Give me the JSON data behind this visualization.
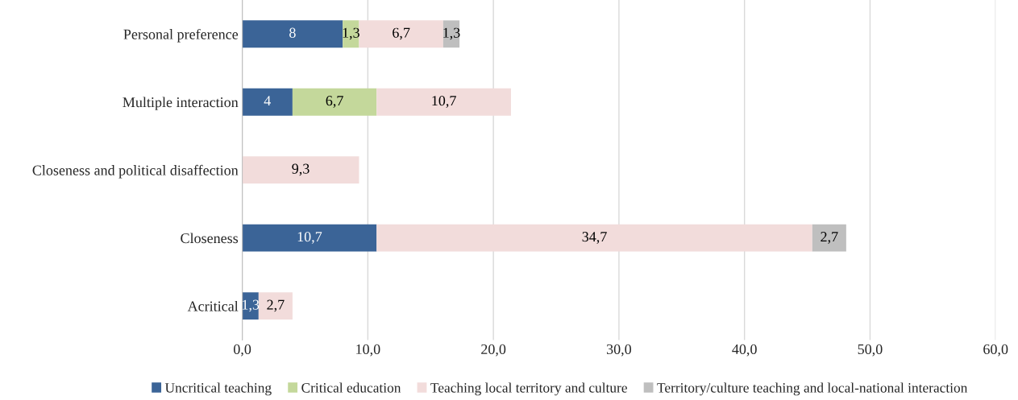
{
  "chart_data": {
    "type": "bar",
    "orientation": "horizontal",
    "stacked": true,
    "categories": [
      "Personal preference",
      "Multiple interaction",
      "Closeness and political disaffection",
      "Closeness",
      "Acritical"
    ],
    "series": [
      {
        "name": "Uncritical teaching",
        "color": "#3b6497",
        "values": [
          8,
          4,
          null,
          10.7,
          1.3
        ],
        "value_labels": [
          "8",
          "4",
          null,
          "10,7",
          "1,3"
        ]
      },
      {
        "name": "Critical education",
        "color": "#c4d89b",
        "values": [
          1.3,
          6.7,
          null,
          null,
          null
        ],
        "value_labels": [
          "1,3",
          "6,7",
          null,
          null,
          null
        ]
      },
      {
        "name": "Teaching local territory and culture",
        "color": "#f2dcdb",
        "values": [
          6.7,
          10.7,
          9.3,
          34.7,
          2.7
        ],
        "value_labels": [
          "6,7",
          "10,7",
          "9,3",
          "34,7",
          "2,7"
        ]
      },
      {
        "name": "Territory/culture teaching and local-national interaction",
        "color": "#bfbfbf",
        "values": [
          1.3,
          null,
          null,
          2.7,
          null
        ],
        "value_labels": [
          "1,3",
          null,
          null,
          "2,7",
          null
        ]
      }
    ],
    "xlim": [
      0,
      60
    ],
    "xticks": [
      {
        "value": 0,
        "label": "0,0"
      },
      {
        "value": 10,
        "label": "10,0"
      },
      {
        "value": 20,
        "label": "20,0"
      },
      {
        "value": 30,
        "label": "30,0"
      },
      {
        "value": 40,
        "label": "40,0"
      },
      {
        "value": 50,
        "label": "50,0"
      },
      {
        "value": 60,
        "label": "60,0"
      }
    ],
    "grid": "x",
    "legend": "bottom"
  }
}
